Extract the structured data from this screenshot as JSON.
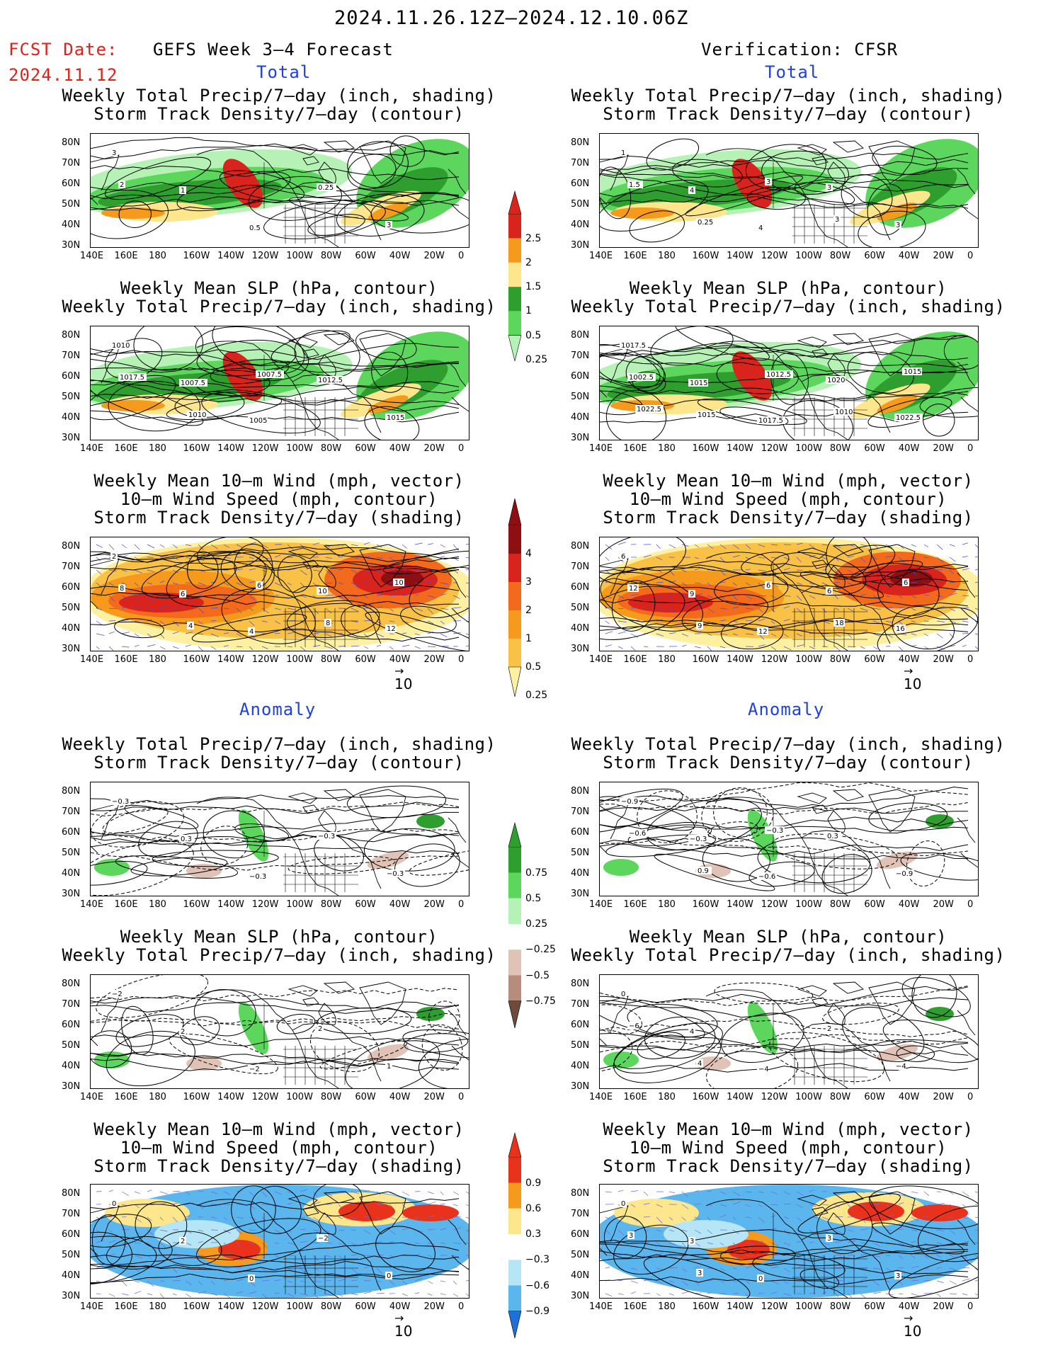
{
  "header": {
    "date_range": "2024.11.26.12Z—2024.12.10.06Z",
    "fcst_label": "FCST Date:",
    "fcst_date": "2024.11.12",
    "left_title": "GEFS Week 3–4 Forecast",
    "right_title": "Verification: CFSR",
    "total_label": "Total",
    "anomaly_label": "Anomaly"
  },
  "lat_labels": [
    "80N",
    "70N",
    "60N",
    "50N",
    "40N",
    "30N"
  ],
  "lon_labels": [
    "140E",
    "160E",
    "180",
    "160W",
    "140W",
    "120W",
    "100W",
    "80W",
    "60W",
    "40W",
    "20W",
    "0"
  ],
  "panel_titles": {
    "precip_storm": [
      "Weekly Total Precip/7–day (inch, shading)",
      "Storm Track Density/7–day (contour)"
    ],
    "slp_precip": [
      "Weekly Mean SLP (hPa, contour)",
      "Weekly Total Precip/7–day (inch, shading)"
    ],
    "wind": [
      "Weekly Mean 10–m Wind (mph, vector)",
      "10–m Wind Speed (mph, contour)",
      "Storm Track Density/7–day (shading)"
    ]
  },
  "vector_ref": "10",
  "colorbars": {
    "precip_total": {
      "labels": [
        "2.5",
        "2",
        "1.5",
        "1",
        "0.5",
        "0.25"
      ],
      "colors": [
        "#d8241c",
        "#f59a1c",
        "#fde68c",
        "#2e9e2e",
        "#5dd65d",
        "#b6f2b6"
      ]
    },
    "storm_total": {
      "labels": [
        "4",
        "3",
        "2",
        "1",
        "0.5",
        "0.25"
      ],
      "colors": [
        "#8e0f12",
        "#d8241c",
        "#f36a1c",
        "#f59a1c",
        "#f9c247",
        "#fdf0a0"
      ]
    },
    "precip_anom": {
      "labels": [
        "0.75",
        "0.5",
        "0.25",
        "−0.25",
        "−0.5",
        "−0.75"
      ],
      "colors": [
        "#2e9e2e",
        "#5dd65d",
        "#b6f2b6",
        "#ffffff",
        "#e0c2b6",
        "#b88c7c",
        "#6e4a3a"
      ]
    },
    "storm_anom": {
      "labels": [
        "0.9",
        "0.6",
        "0.3",
        "−0.3",
        "−0.6",
        "−0.9"
      ],
      "colors": [
        "#e8321c",
        "#f59a1c",
        "#fde68c",
        "#ffffff",
        "#b6e6f6",
        "#5cb6ee",
        "#1f6fd8"
      ]
    }
  },
  "panel_labels": {
    "p1": [
      "3",
      "1",
      "0.5",
      "0.25",
      "3",
      "2"
    ],
    "p2": [
      "1010",
      "1007.5",
      "1005",
      "1012.5",
      "1015",
      "1017.5",
      "1010",
      "1007.5"
    ],
    "p3": [
      "2",
      "6",
      "4",
      "10",
      "12",
      "8",
      "4",
      "6",
      "8",
      "10"
    ],
    "p4": [
      "1",
      "4",
      "4",
      "3",
      "3",
      "1.5",
      "0.25",
      "3",
      "3"
    ],
    "p5": [
      "1017.5",
      "1015",
      "1017.5",
      "1020",
      "1022.5",
      "1002.5",
      "1015",
      "1012.5",
      "1010",
      "1015",
      "1022.5"
    ],
    "p6": [
      "6",
      "9",
      "12",
      "6",
      "16",
      "12",
      "9",
      "6",
      "18",
      "6"
    ],
    "p7": [
      "−0.3",
      "0.3",
      "−0.3",
      "−0.3",
      "−0.3"
    ],
    "p8": [
      "−0.9",
      "−0.3",
      "−0.6",
      "0.3",
      "−0.9",
      "−0.6",
      "0.9",
      "−0.3"
    ],
    "p9": [
      "−2",
      "2",
      "−2",
      "2",
      "1"
    ],
    "p10": [
      "0",
      "4",
      "−4",
      "2",
      "−4",
      "−6",
      "4"
    ],
    "p11": [
      "0",
      "2",
      "0",
      "−2",
      "0"
    ],
    "p12": [
      "0",
      "3",
      "0",
      "3",
      "3",
      "3",
      "3"
    ]
  }
}
